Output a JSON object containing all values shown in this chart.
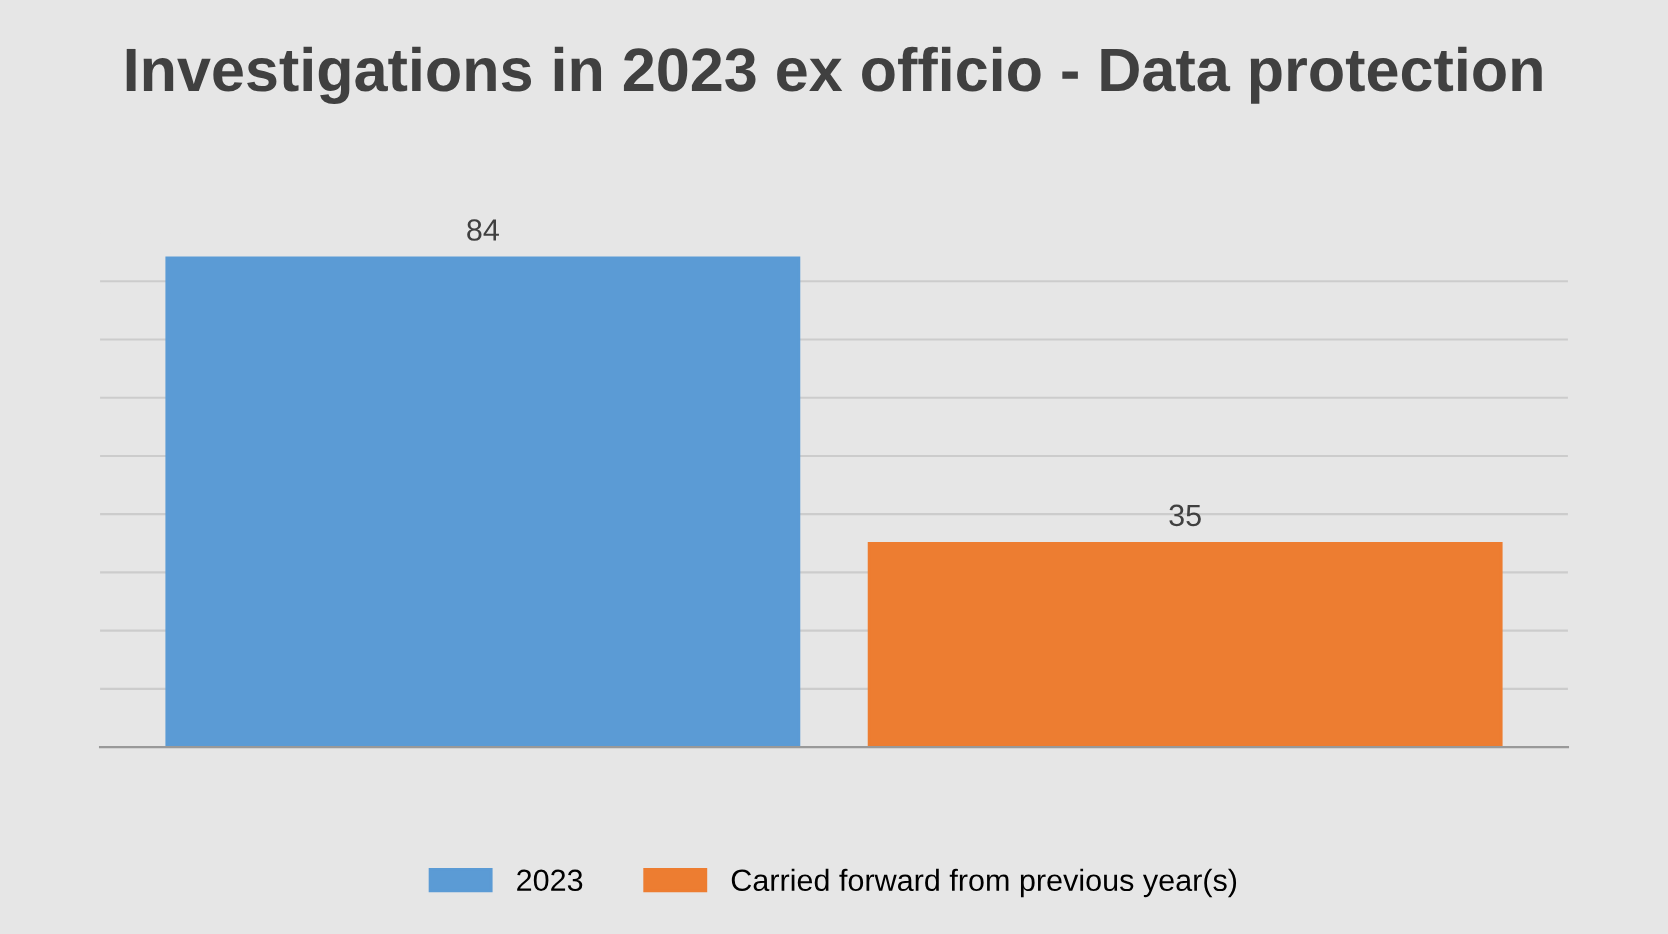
{
  "chart_data": {
    "type": "bar",
    "title": "Investigations in 2023 ex officio - Data protection",
    "categories": [
      null
    ],
    "series": [
      {
        "name": "2023",
        "color": "#5b9bd5",
        "values": [
          84
        ]
      },
      {
        "name": "Carried forward from previous year(s)",
        "color": "#ed7d31",
        "values": [
          35
        ]
      }
    ],
    "data_labels": true,
    "legend": "bottom",
    "grid": "y",
    "tick_labels": false
  }
}
